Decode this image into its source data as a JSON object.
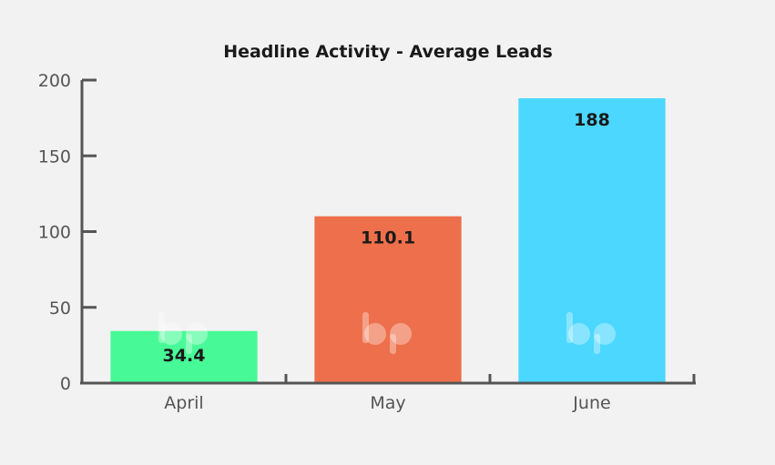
{
  "chart_data": {
    "type": "bar",
    "title": "Headline Activity - Average Leads",
    "xlabel": "",
    "ylabel": "",
    "categories": [
      "April",
      "May",
      "June"
    ],
    "values": [
      34.4,
      110.1,
      188
    ],
    "value_labels": [
      "34.4",
      "110.1",
      "188"
    ],
    "ylim": [
      0,
      200
    ],
    "yticks": [
      0,
      50,
      100,
      150,
      200
    ],
    "grid": false,
    "colors": [
      "#48fa97",
      "#ee6f4b",
      "#4bd7ff"
    ],
    "axis_color": "#555555",
    "background": "#f2f2f2"
  }
}
